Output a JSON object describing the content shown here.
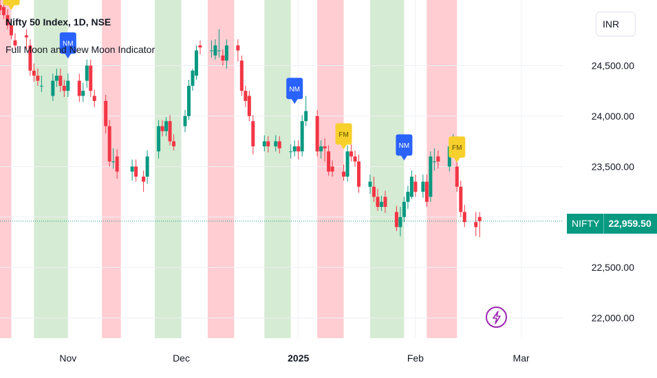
{
  "header": {
    "symbol_title": "Nifty 50 Index, 1D, NSE",
    "indicator_name": "Full Moon and New Moon Indicator",
    "currency_label": "INR"
  },
  "last_price": {
    "symbol": "NIFTY",
    "value": "22,959.50",
    "color": "#089981"
  },
  "colors": {
    "up": "#089981",
    "down": "#f23645",
    "full_moon_band": "#ffcdd2",
    "new_moon_band": "#d5ebd3",
    "nm_marker": "#2962ff",
    "fm_marker": "#f7d02c"
  },
  "chart_data": {
    "type": "candlestick",
    "title": "Nifty 50 Index, 1D, NSE",
    "y_axis": {
      "ticks": [
        22000,
        22500,
        23000,
        23500,
        24000,
        24500
      ],
      "tick_labels": [
        "22,000.00",
        "22,500.00",
        "",
        "23,500.00",
        "24,000.00",
        "24,500.00"
      ],
      "range": [
        21800,
        25150
      ]
    },
    "x_axis": {
      "tick_labels": [
        "Nov",
        "Dec",
        "2025",
        "Feb",
        "Mar"
      ],
      "tick_dates": [
        "2024-11-01",
        "2024-12-01",
        "2025-01-01",
        "2025-02-01",
        "2025-03-01"
      ],
      "range": [
        "2024-10-14",
        "2025-03-12"
      ]
    },
    "bands": [
      {
        "type": "full_moon",
        "start": "2024-10-14",
        "end": "2024-10-17"
      },
      {
        "type": "new_moon",
        "start": "2024-10-23",
        "end": "2024-11-01"
      },
      {
        "type": "full_moon",
        "start": "2024-11-10",
        "end": "2024-11-15"
      },
      {
        "type": "new_moon",
        "start": "2024-11-24",
        "end": "2024-12-01"
      },
      {
        "type": "full_moon",
        "start": "2024-12-08",
        "end": "2024-12-15"
      },
      {
        "type": "new_moon",
        "start": "2024-12-23",
        "end": "2024-12-30"
      },
      {
        "type": "full_moon",
        "start": "2025-01-06",
        "end": "2025-01-13"
      },
      {
        "type": "new_moon",
        "start": "2025-01-20",
        "end": "2025-01-29"
      },
      {
        "type": "full_moon",
        "start": "2025-02-04",
        "end": "2025-02-12"
      }
    ],
    "markers": [
      {
        "label": "FM",
        "date": "2024-10-17",
        "price": 25050
      },
      {
        "label": "NM",
        "date": "2024-11-01",
        "price": 24570
      },
      {
        "label": "NM",
        "date": "2024-12-31",
        "price": 24120
      },
      {
        "label": "FM",
        "date": "2025-01-13",
        "price": 23670
      },
      {
        "label": "NM",
        "date": "2025-01-29",
        "price": 23560
      },
      {
        "label": "FM",
        "date": "2025-02-12",
        "price": 23540
      }
    ],
    "last_value": 22959.5,
    "series": [
      {
        "name": "NIFTY",
        "dates": [
          "2024-10-14",
          "2024-10-15",
          "2024-10-16",
          "2024-10-17",
          "2024-10-18",
          "2024-10-21",
          "2024-10-22",
          "2024-10-23",
          "2024-10-24",
          "2024-10-25",
          "2024-10-28",
          "2024-10-29",
          "2024-10-30",
          "2024-10-31",
          "2024-11-01",
          "2024-11-04",
          "2024-11-05",
          "2024-11-06",
          "2024-11-07",
          "2024-11-08",
          "2024-11-11",
          "2024-11-12",
          "2024-11-13",
          "2024-11-14",
          "2024-11-18",
          "2024-11-19",
          "2024-11-21",
          "2024-11-22",
          "2024-11-25",
          "2024-11-26",
          "2024-11-27",
          "2024-11-28",
          "2024-11-29",
          "2024-12-02",
          "2024-12-03",
          "2024-12-04",
          "2024-12-05",
          "2024-12-06",
          "2024-12-09",
          "2024-12-10",
          "2024-12-11",
          "2024-12-12",
          "2024-12-13",
          "2024-12-16",
          "2024-12-17",
          "2024-12-18",
          "2024-12-19",
          "2024-12-20",
          "2024-12-23",
          "2024-12-24",
          "2024-12-26",
          "2024-12-27",
          "2024-12-30",
          "2024-12-31",
          "2025-01-01",
          "2025-01-02",
          "2025-01-03",
          "2025-01-06",
          "2025-01-07",
          "2025-01-08",
          "2025-01-09",
          "2025-01-10",
          "2025-01-13",
          "2025-01-14",
          "2025-01-15",
          "2025-01-16",
          "2025-01-17",
          "2025-01-20",
          "2025-01-21",
          "2025-01-22",
          "2025-01-23",
          "2025-01-24",
          "2025-01-27",
          "2025-01-28",
          "2025-01-29",
          "2025-01-30",
          "2025-01-31",
          "2025-02-01",
          "2025-02-03",
          "2025-02-04",
          "2025-02-05",
          "2025-02-06",
          "2025-02-07",
          "2025-02-10",
          "2025-02-11",
          "2025-02-12",
          "2025-02-13",
          "2025-02-14",
          "2025-02-17",
          "2025-02-18"
        ],
        "open": [
          25100,
          25080,
          25000,
          24900,
          24750,
          24800,
          24700,
          24450,
          24400,
          24300,
          24200,
          24350,
          24400,
          24300,
          24250,
          24350,
          24200,
          24350,
          24500,
          24200,
          24150,
          23900,
          23550,
          23600,
          23450,
          23500,
          23400,
          23400,
          23650,
          23900,
          23850,
          23950,
          23750,
          23900,
          24000,
          24300,
          24400,
          24700,
          24650,
          24600,
          24650,
          24600,
          24550,
          24700,
          24550,
          24250,
          24200,
          23950,
          23700,
          23750,
          23700,
          23750,
          23650,
          23650,
          23700,
          23650,
          23950,
          24000,
          23650,
          23700,
          23650,
          23500,
          23450,
          23400,
          23650,
          23600,
          23550,
          23300,
          23300,
          23200,
          23100,
          23200,
          23050,
          22900,
          23000,
          23150,
          23200,
          23350,
          23250,
          23350,
          23200,
          23550,
          23600,
          23500,
          23700,
          23500,
          23300,
          23050,
          22950,
          23000
        ],
        "close": [
          25050,
          25000,
          24900,
          24800,
          24700,
          24780,
          24450,
          24400,
          24350,
          24300,
          24350,
          24400,
          24300,
          24250,
          24350,
          24200,
          24250,
          24500,
          24250,
          24150,
          23900,
          23550,
          23550,
          23450,
          23500,
          23400,
          23350,
          23600,
          23900,
          23850,
          23950,
          23750,
          23700,
          24000,
          24300,
          24450,
          24650,
          24680,
          24650,
          24700,
          24650,
          24550,
          24700,
          24650,
          24250,
          24150,
          24000,
          23700,
          23750,
          23700,
          23750,
          23680,
          23650,
          23700,
          23650,
          23950,
          24050,
          23650,
          23700,
          23680,
          23450,
          23450,
          23400,
          23650,
          23600,
          23550,
          23300,
          23350,
          23200,
          23100,
          23150,
          23100,
          22900,
          23000,
          23150,
          23250,
          23400,
          23250,
          23350,
          23150,
          23600,
          23550,
          23550,
          23700,
          23750,
          23300,
          23050,
          22950,
          22900,
          22959.5
        ],
        "high": [
          25180,
          25130,
          25060,
          24960,
          24820,
          24860,
          24760,
          24520,
          24470,
          24400,
          24420,
          24470,
          24470,
          24360,
          24420,
          24420,
          24330,
          24560,
          24560,
          24260,
          24210,
          23960,
          23680,
          23670,
          23570,
          23570,
          23460,
          23660,
          23960,
          23960,
          23990,
          24010,
          23820,
          24060,
          24360,
          24470,
          24700,
          24750,
          24750,
          24760,
          24860,
          24660,
          24760,
          24760,
          24600,
          24300,
          24250,
          24010,
          23810,
          23800,
          23810,
          23800,
          23720,
          23760,
          23760,
          24010,
          24200,
          24060,
          23760,
          23780,
          23710,
          23560,
          23520,
          23710,
          23720,
          23660,
          23620,
          23420,
          23400,
          23280,
          23210,
          23260,
          23110,
          23100,
          23200,
          23310,
          23460,
          23420,
          23420,
          23420,
          23650,
          23680,
          23660,
          23780,
          23820,
          23560,
          23360,
          23120,
          23050,
          23050
        ],
        "low": [
          25000,
          24960,
          24860,
          24760,
          24660,
          24660,
          24400,
          24340,
          24300,
          24240,
          24150,
          24290,
          24240,
          24190,
          24190,
          24140,
          24140,
          24280,
          24190,
          24090,
          23830,
          23500,
          23480,
          23380,
          23360,
          23350,
          23250,
          23330,
          23580,
          23800,
          23800,
          23710,
          23660,
          23840,
          23960,
          24250,
          24360,
          24610,
          24580,
          24560,
          24580,
          24500,
          24470,
          24540,
          24200,
          24090,
          23950,
          23620,
          23650,
          23640,
          23650,
          23630,
          23580,
          23600,
          23570,
          23600,
          23900,
          23600,
          23580,
          23550,
          23410,
          23400,
          23360,
          23350,
          23550,
          23500,
          23240,
          23230,
          23150,
          23060,
          23060,
          23040,
          22860,
          22810,
          22950,
          23080,
          23180,
          23200,
          23190,
          23100,
          23150,
          23460,
          23480,
          23450,
          23650,
          23250,
          23000,
          22900,
          22810,
          22800
        ]
      }
    ]
  }
}
